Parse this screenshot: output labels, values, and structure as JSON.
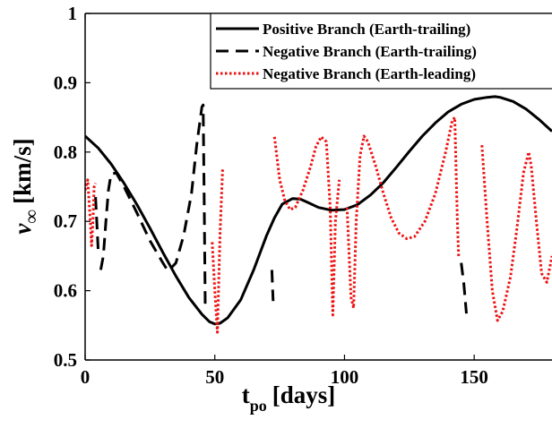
{
  "chart_data": {
    "type": "line",
    "title": "",
    "xlabel": {
      "main": "t",
      "subscript": "po",
      "unit": "[days]"
    },
    "ylabel": {
      "main": "v",
      "subscript": "∞",
      "unit": "[km/s]"
    },
    "xlim": [
      0,
      180
    ],
    "ylim": [
      0.5,
      1.0
    ],
    "xticks": [
      0,
      50,
      100,
      150
    ],
    "xtick_labels": [
      "0",
      "50",
      "100",
      "150"
    ],
    "yticks": [
      0.5,
      0.6,
      0.7,
      0.8,
      0.9,
      1.0
    ],
    "ytick_labels": [
      "0.5",
      "0.6",
      "0.7",
      "0.8",
      "0.9",
      "1"
    ],
    "grid": false,
    "legend_position": "top-right",
    "series": [
      {
        "name": "Positive Branch (Earth-trailing)",
        "color": "#000000",
        "style": "solid",
        "segments": [
          [
            [
              0,
              0.823
            ],
            [
              5,
              0.806
            ],
            [
              10,
              0.783
            ],
            [
              15,
              0.755
            ],
            [
              20,
              0.724
            ],
            [
              25,
              0.69
            ],
            [
              30,
              0.655
            ],
            [
              35,
              0.621
            ],
            [
              40,
              0.59
            ],
            [
              45,
              0.566
            ],
            [
              48,
              0.555
            ],
            [
              50,
              0.552
            ],
            [
              52,
              0.553
            ],
            [
              55,
              0.561
            ],
            [
              60,
              0.587
            ],
            [
              65,
              0.63
            ],
            [
              70,
              0.68
            ],
            [
              73,
              0.705
            ],
            [
              76,
              0.725
            ],
            [
              80,
              0.733
            ],
            [
              83,
              0.732
            ],
            [
              86,
              0.727
            ],
            [
              90,
              0.72
            ],
            [
              95,
              0.716
            ],
            [
              100,
              0.717
            ],
            [
              105,
              0.724
            ],
            [
              110,
              0.738
            ],
            [
              115,
              0.756
            ],
            [
              120,
              0.778
            ],
            [
              125,
              0.801
            ],
            [
              130,
              0.823
            ],
            [
              135,
              0.842
            ],
            [
              140,
              0.858
            ],
            [
              145,
              0.869
            ],
            [
              150,
              0.876
            ],
            [
              155,
              0.879
            ],
            [
              158,
              0.88
            ],
            [
              160,
              0.879
            ],
            [
              165,
              0.873
            ],
            [
              170,
              0.862
            ],
            [
              175,
              0.847
            ],
            [
              180,
              0.83
            ]
          ]
        ]
      },
      {
        "name": "Negative Branch (Earth-trailing)",
        "color": "#000000",
        "style": "dashed",
        "segments": [
          [
            [
              4,
              0.735
            ],
            [
              4.5,
              0.7
            ],
            [
              5,
              0.66
            ]
          ],
          [
            [
              6,
              0.63
            ],
            [
              7,
              0.65
            ],
            [
              8,
              0.7
            ],
            [
              9,
              0.745
            ],
            [
              10,
              0.768
            ],
            [
              12,
              0.77
            ],
            [
              15,
              0.75
            ],
            [
              20,
              0.712
            ],
            [
              25,
              0.672
            ],
            [
              30,
              0.64
            ],
            [
              32,
              0.628
            ],
            [
              35,
              0.64
            ],
            [
              38,
              0.68
            ],
            [
              41,
              0.74
            ],
            [
              43,
              0.81
            ],
            [
              45,
              0.865
            ],
            [
              45.5,
              0.868
            ],
            [
              46,
              0.7
            ],
            [
              46.3,
              0.58
            ]
          ],
          [
            [
              72,
              0.63
            ],
            [
              72.3,
              0.6
            ],
            [
              72.5,
              0.585
            ]
          ],
          [
            [
              145,
              0.64
            ],
            [
              146,
              0.61
            ],
            [
              147,
              0.567
            ]
          ]
        ]
      },
      {
        "name": "Negative Branch (Earth-leading)",
        "color": "#ee1111",
        "style": "dotted",
        "segments": [
          [
            [
              0,
              0.745
            ],
            [
              1,
              0.76
            ],
            [
              2,
              0.7
            ],
            [
              2.5,
              0.665
            ],
            [
              3,
              0.7
            ],
            [
              3.5,
              0.75
            ],
            [
              4,
              0.755
            ]
          ],
          [
            [
              49,
              0.67
            ],
            [
              50,
              0.6
            ],
            [
              51,
              0.54
            ],
            [
              52,
              0.68
            ],
            [
              53,
              0.775
            ]
          ],
          [
            [
              73,
              0.822
            ],
            [
              75,
              0.76
            ],
            [
              77,
              0.73
            ],
            [
              79,
              0.717
            ],
            [
              81,
              0.72
            ],
            [
              84,
              0.745
            ],
            [
              87,
              0.78
            ],
            [
              89,
              0.808
            ],
            [
              91,
              0.822
            ],
            [
              93,
              0.815
            ],
            [
              94.5,
              0.72
            ],
            [
              95.5,
              0.565
            ],
            [
              96.5,
              0.7
            ],
            [
              98,
              0.76
            ]
          ],
          [
            [
              101,
              0.72
            ],
            [
              102.5,
              0.59
            ],
            [
              103.5,
              0.575
            ],
            [
              104.5,
              0.7
            ],
            [
              106,
              0.795
            ],
            [
              107.5,
              0.823
            ],
            [
              109,
              0.815
            ],
            [
              112,
              0.78
            ],
            [
              115,
              0.74
            ],
            [
              118,
              0.705
            ],
            [
              121,
              0.683
            ],
            [
              124,
              0.675
            ],
            [
              127,
              0.678
            ],
            [
              131,
              0.7
            ],
            [
              135,
              0.74
            ],
            [
              139,
              0.8
            ],
            [
              141.5,
              0.845
            ],
            [
              142.5,
              0.85
            ],
            [
              143.5,
              0.7
            ],
            [
              144,
              0.65
            ]
          ],
          [
            [
              153,
              0.81
            ],
            [
              155,
              0.7
            ],
            [
              157,
              0.6
            ],
            [
              159,
              0.557
            ],
            [
              161,
              0.57
            ],
            [
              164,
              0.62
            ],
            [
              166.5,
              0.69
            ],
            [
              169,
              0.77
            ],
            [
              171,
              0.8
            ],
            [
              172,
              0.78
            ],
            [
              174,
              0.7
            ],
            [
              176,
              0.625
            ],
            [
              178,
              0.612
            ],
            [
              180,
              0.65
            ]
          ]
        ]
      }
    ]
  }
}
